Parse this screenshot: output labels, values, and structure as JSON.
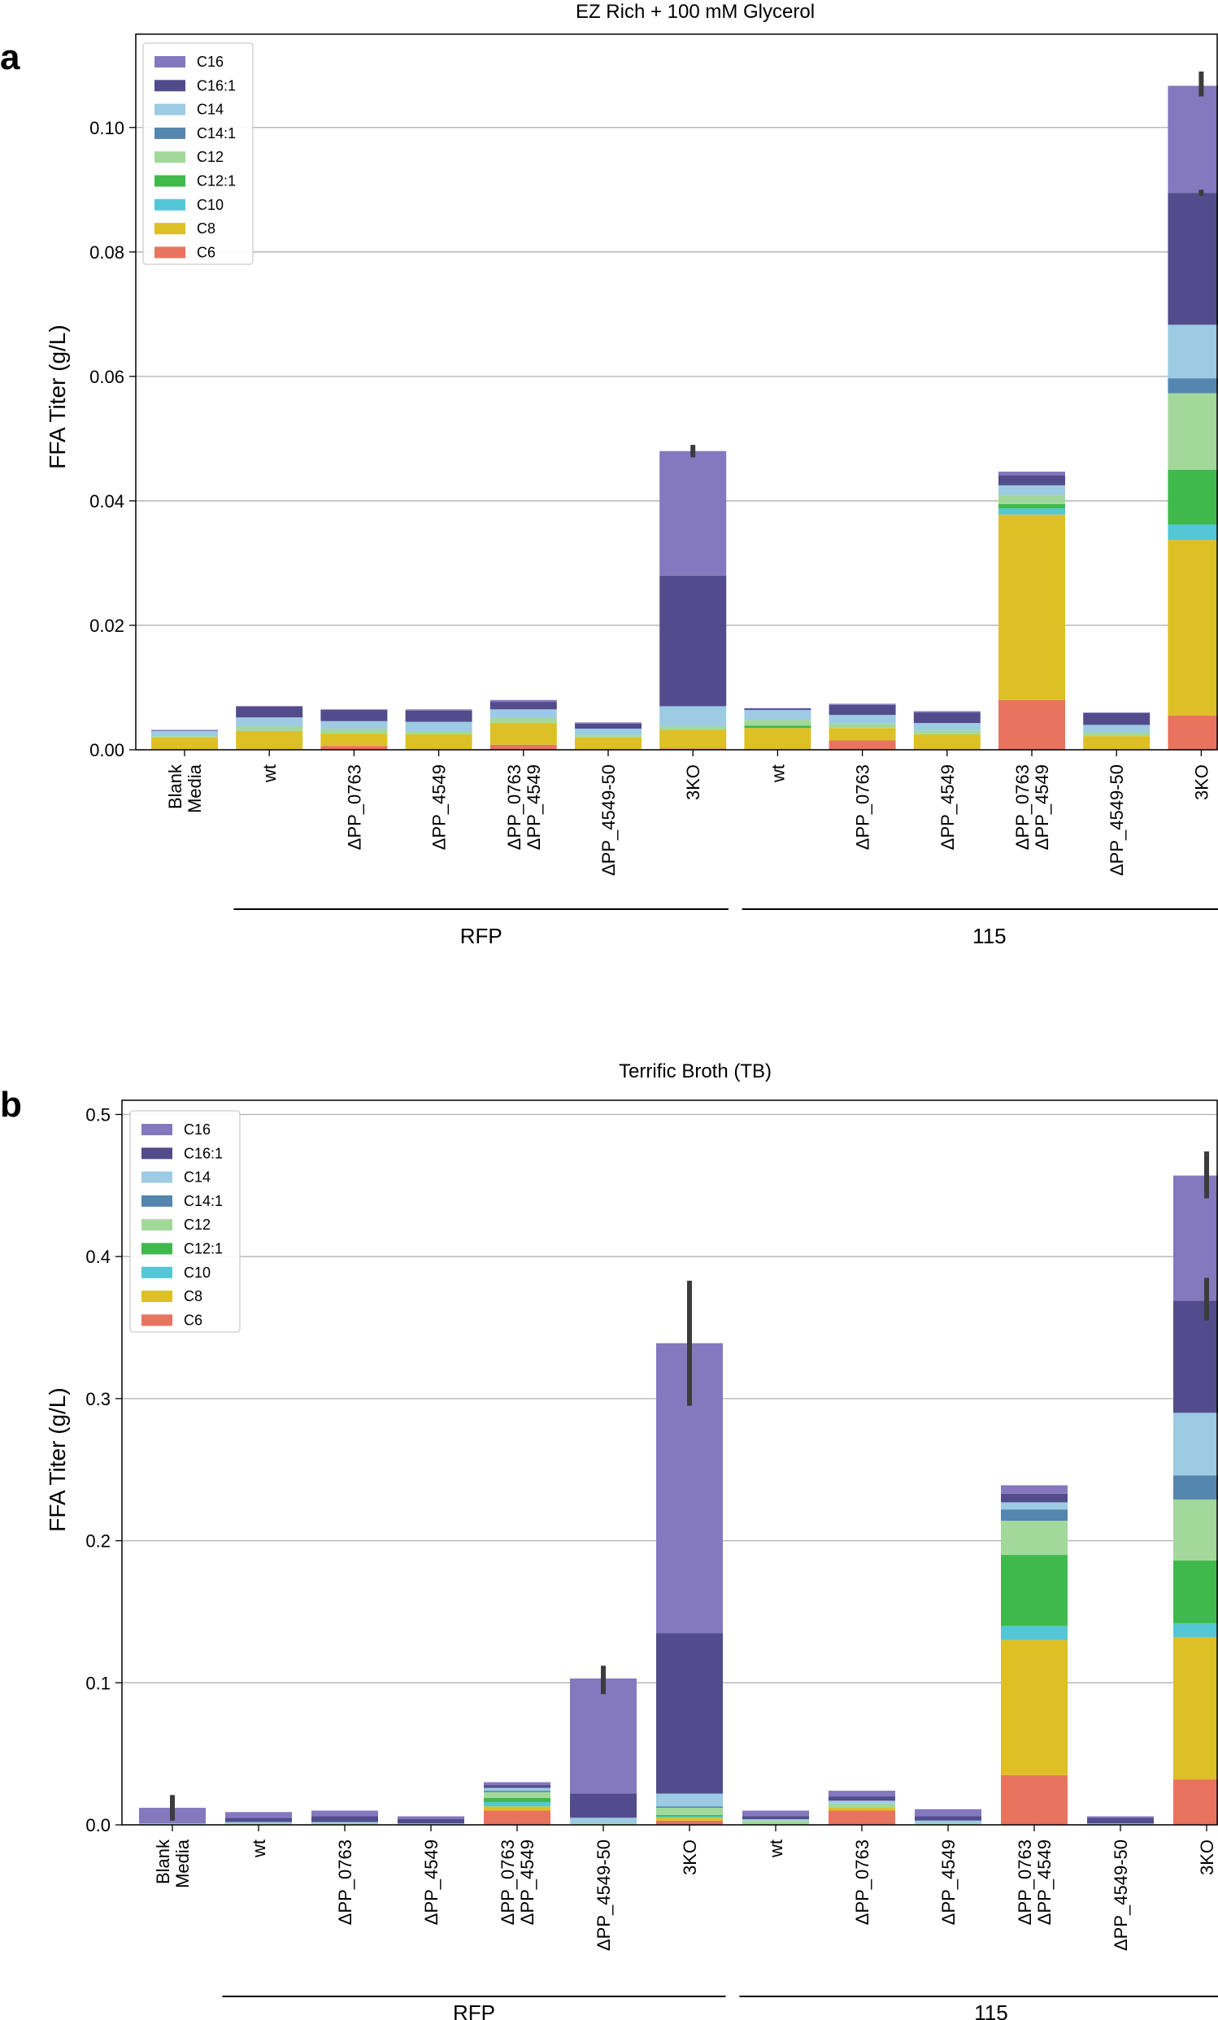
{
  "chart_data": [
    {
      "type": "bar",
      "stacked": true,
      "panel": "a",
      "title": "EZ Rich + 100 mM Glycerol",
      "ylabel": "FFA Titer (g/L)",
      "xlabel": "",
      "ylim": [
        0,
        0.115
      ],
      "yticks": [
        0.0,
        0.02,
        0.04,
        0.06,
        0.08,
        0.1
      ],
      "ytick_labels": [
        "0.00",
        "0.02",
        "0.04",
        "0.06",
        "0.08",
        "0.10"
      ],
      "grid": "horizontal",
      "legend_position": "top-left",
      "categories": [
        "Blank Media",
        "wt",
        "ΔPP_0763",
        "ΔPP_4549",
        "ΔPP_0763 ΔPP_4549",
        "ΔPP_4549-50",
        "3KO",
        "wt",
        "ΔPP_0763",
        "ΔPP_4549",
        "ΔPP_0763 ΔPP_4549",
        "ΔPP_4549-50",
        "3KO"
      ],
      "category_lines": [
        [
          "Blank",
          "Media"
        ],
        [
          "wt"
        ],
        [
          "ΔPP_0763"
        ],
        [
          "ΔPP_4549"
        ],
        [
          "ΔPP_0763",
          "ΔPP_4549"
        ],
        [
          "ΔPP_4549-50"
        ],
        [
          "3KO"
        ],
        [
          "wt"
        ],
        [
          "ΔPP_0763"
        ],
        [
          "ΔPP_4549"
        ],
        [
          "ΔPP_0763",
          "ΔPP_4549"
        ],
        [
          "ΔPP_4549-50"
        ],
        [
          "3KO"
        ]
      ],
      "groups": [
        {
          "label": "RFP",
          "from": 1,
          "to": 6
        },
        {
          "label": "115",
          "from": 7,
          "to": 12
        }
      ],
      "series": [
        {
          "name": "C6",
          "color": "#e8735f",
          "values": [
            0.0,
            0.0,
            0.0006,
            0.0,
            0.0008,
            0.0,
            0.0002,
            0.0,
            0.0015,
            0.0,
            0.008,
            0.0,
            0.0055
          ]
        },
        {
          "name": "C8",
          "color": "#ddc025",
          "values": [
            0.002,
            0.003,
            0.002,
            0.0025,
            0.0035,
            0.002,
            0.003,
            0.0035,
            0.002,
            0.0025,
            0.0298,
            0.0022,
            0.0282
          ]
        },
        {
          "name": "C10",
          "color": "#54c7d6",
          "values": [
            0.0,
            0.0,
            0.0,
            0.0,
            0.0,
            0.0,
            0.0,
            0.0,
            0.0,
            0.0,
            0.001,
            0.0,
            0.0025
          ]
        },
        {
          "name": "C12:1",
          "color": "#3fb94c",
          "values": [
            0.0,
            0.0,
            0.0,
            0.0,
            0.0,
            0.0,
            0.0,
            0.0004,
            0.0,
            0.0,
            0.0007,
            0.0,
            0.0088
          ]
        },
        {
          "name": "C12",
          "color": "#a2d99b",
          "values": [
            0.0002,
            0.0008,
            0.0008,
            0.0005,
            0.0008,
            0.0004,
            0.0006,
            0.0009,
            0.0007,
            0.0006,
            0.0015,
            0.0006,
            0.0123
          ]
        },
        {
          "name": "C14:1",
          "color": "#5486b0",
          "values": [
            0.0,
            0.0,
            0.0,
            0.0,
            0.0,
            0.0,
            0.0,
            0.0,
            0.0,
            0.0,
            0.0,
            0.0,
            0.0024
          ]
        },
        {
          "name": "C14",
          "color": "#9ccbe3",
          "values": [
            0.0008,
            0.0014,
            0.0012,
            0.0015,
            0.0014,
            0.001,
            0.0032,
            0.0016,
            0.0014,
            0.0012,
            0.0015,
            0.0012,
            0.0086
          ]
        },
        {
          "name": "C16:1",
          "color": "#524c8c",
          "values": [
            0.0,
            0.0018,
            0.0018,
            0.0018,
            0.0012,
            0.0008,
            0.021,
            0.0002,
            0.0016,
            0.0017,
            0.0016,
            0.0019,
            0.0212
          ]
        },
        {
          "name": "C16",
          "color": "#8478bf",
          "values": [
            0.0002,
            0.0,
            0.0001,
            0.0002,
            0.0003,
            0.0002,
            0.02,
            0.0001,
            0.0002,
            0.0002,
            0.0006,
            0.0001,
            0.0172
          ]
        }
      ],
      "totals": [
        0.0032,
        0.007,
        0.0065,
        0.0065,
        0.008,
        0.0044,
        0.048,
        0.0067,
        0.0074,
        0.0062,
        0.044,
        0.006,
        0.1067
      ],
      "error_bars": [
        {
          "category": 6,
          "series": "C16",
          "low": 0.047,
          "high": 0.049
        },
        {
          "category": 12,
          "series": "C16",
          "low": 0.105,
          "high": 0.109
        },
        {
          "category": 12,
          "series": "C16:1",
          "low": 0.089,
          "high": 0.09
        }
      ]
    },
    {
      "type": "bar",
      "stacked": true,
      "panel": "b",
      "title": "Terrific Broth (TB)",
      "ylabel": "FFA Titer (g/L)",
      "xlabel": "",
      "ylim": [
        0,
        0.51
      ],
      "yticks": [
        0.0,
        0.1,
        0.2,
        0.3,
        0.4,
        0.5
      ],
      "ytick_labels": [
        "0.0",
        "0.1",
        "0.2",
        "0.3",
        "0.4",
        "0.5"
      ],
      "grid": "horizontal",
      "legend_position": "top-left",
      "categories": [
        "Blank Media",
        "wt",
        "ΔPP_0763",
        "ΔPP_4549",
        "ΔPP_0763 ΔPP_4549",
        "ΔPP_4549-50",
        "3KO",
        "wt",
        "ΔPP_0763",
        "ΔPP_4549",
        "ΔPP_0763 ΔPP_4549",
        "ΔPP_4549-50",
        "3KO"
      ],
      "category_lines": [
        [
          "Blank",
          "Media"
        ],
        [
          "wt"
        ],
        [
          "ΔPP_0763"
        ],
        [
          "ΔPP_4549"
        ],
        [
          "ΔPP_0763",
          "ΔPP_4549"
        ],
        [
          "ΔPP_4549-50"
        ],
        [
          "3KO"
        ],
        [
          "wt"
        ],
        [
          "ΔPP_0763"
        ],
        [
          "ΔPP_4549"
        ],
        [
          "ΔPP_0763",
          "ΔPP_4549"
        ],
        [
          "ΔPP_4549-50"
        ],
        [
          "3KO"
        ]
      ],
      "groups": [
        {
          "label": "RFP",
          "from": 1,
          "to": 6
        },
        {
          "label": "115",
          "from": 7,
          "to": 12
        }
      ],
      "series": [
        {
          "name": "C6",
          "color": "#e8735f",
          "values": [
            0.0,
            0.0,
            0.0,
            0.0,
            0.01,
            0.0,
            0.003,
            0.0,
            0.01,
            0.0,
            0.035,
            0.0,
            0.032
          ]
        },
        {
          "name": "C8",
          "color": "#ddc025",
          "values": [
            0.0,
            0.0,
            0.0,
            0.0,
            0.003,
            0.0,
            0.002,
            0.0,
            0.002,
            0.0,
            0.095,
            0.0,
            0.1
          ]
        },
        {
          "name": "C10",
          "color": "#54c7d6",
          "values": [
            0.0,
            0.0,
            0.0,
            0.0,
            0.003,
            0.0,
            0.001,
            0.0,
            0.0,
            0.0,
            0.01,
            0.0,
            0.01
          ]
        },
        {
          "name": "C12:1",
          "color": "#3fb94c",
          "values": [
            0.0,
            0.0,
            0.0,
            0.0,
            0.003,
            0.0,
            0.001,
            0.0,
            0.0,
            0.0,
            0.05,
            0.0,
            0.044
          ]
        },
        {
          "name": "C12",
          "color": "#a2d99b",
          "values": [
            0.0,
            0.001,
            0.001,
            0.0,
            0.004,
            0.001,
            0.005,
            0.003,
            0.003,
            0.001,
            0.024,
            0.0,
            0.043
          ]
        },
        {
          "name": "C14:1",
          "color": "#5486b0",
          "values": [
            0.0,
            0.0,
            0.0,
            0.0,
            0.001,
            0.0,
            0.001,
            0.0,
            0.0,
            0.0,
            0.008,
            0.0,
            0.017
          ]
        },
        {
          "name": "C14",
          "color": "#9ccbe3",
          "values": [
            0.001,
            0.001,
            0.001,
            0.001,
            0.002,
            0.004,
            0.009,
            0.001,
            0.002,
            0.002,
            0.005,
            0.001,
            0.044
          ]
        },
        {
          "name": "C16:1",
          "color": "#524c8c",
          "values": [
            0.0,
            0.003,
            0.004,
            0.003,
            0.002,
            0.017,
            0.113,
            0.002,
            0.003,
            0.003,
            0.006,
            0.004,
            0.079
          ]
        },
        {
          "name": "C16",
          "color": "#8478bf",
          "values": [
            0.011,
            0.004,
            0.004,
            0.002,
            0.002,
            0.081,
            0.204,
            0.004,
            0.004,
            0.005,
            0.006,
            0.001,
            0.088
          ]
        }
      ],
      "totals": [
        0.012,
        0.009,
        0.01,
        0.006,
        0.03,
        0.103,
        0.339,
        0.01,
        0.024,
        0.011,
        0.239,
        0.006,
        0.457
      ],
      "error_bars": [
        {
          "category": 0,
          "series": "C16",
          "low": 0.003,
          "high": 0.021
        },
        {
          "category": 5,
          "series": "C16",
          "low": 0.092,
          "high": 0.112
        },
        {
          "category": 6,
          "series": "C16",
          "low": 0.295,
          "high": 0.383
        },
        {
          "category": 12,
          "series": "C16",
          "low": 0.441,
          "high": 0.474
        },
        {
          "category": 12,
          "series": "C16:1",
          "low": 0.355,
          "high": 0.385
        }
      ]
    }
  ]
}
